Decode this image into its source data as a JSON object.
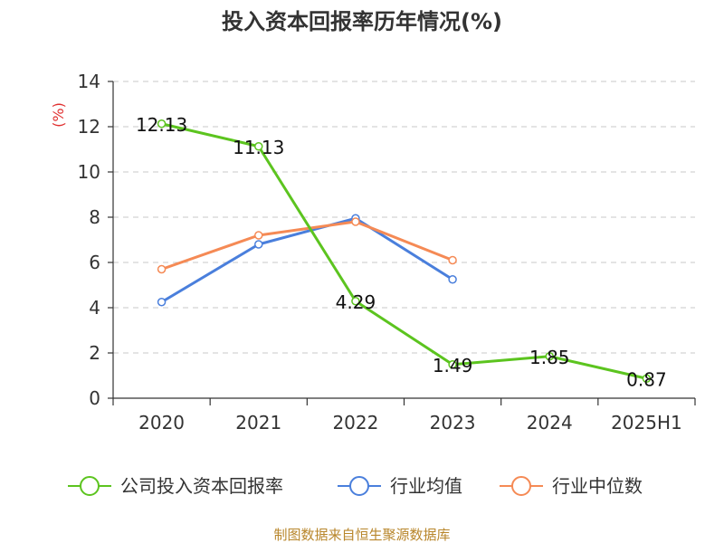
{
  "chart_data": {
    "type": "line",
    "title": "投入资本回报率历年情况(%)",
    "ylabel": "(%)",
    "categories": [
      "2020",
      "2021",
      "2022",
      "2023",
      "2024",
      "2025H1"
    ],
    "ylim": [
      0,
      14
    ],
    "yticks": [
      0,
      2,
      4,
      6,
      8,
      10,
      12,
      14
    ],
    "grid": true,
    "legend_position": "bottom",
    "series": [
      {
        "name": "公司投入资本回报率",
        "color": "#5cc41f",
        "values": [
          12.13,
          11.13,
          4.29,
          1.49,
          1.85,
          0.87
        ],
        "labels": [
          "12.13",
          "11.13",
          "4.29",
          "1.49",
          "1.85",
          "0.87"
        ]
      },
      {
        "name": "行业均值",
        "color": "#4a7fdc",
        "values": [
          4.25,
          6.8,
          7.95,
          5.25,
          null,
          null
        ]
      },
      {
        "name": "行业中位数",
        "color": "#f58a55",
        "values": [
          5.7,
          7.2,
          7.8,
          6.1,
          null,
          null
        ]
      }
    ]
  },
  "source": "制图数据来自恒生聚源数据库"
}
